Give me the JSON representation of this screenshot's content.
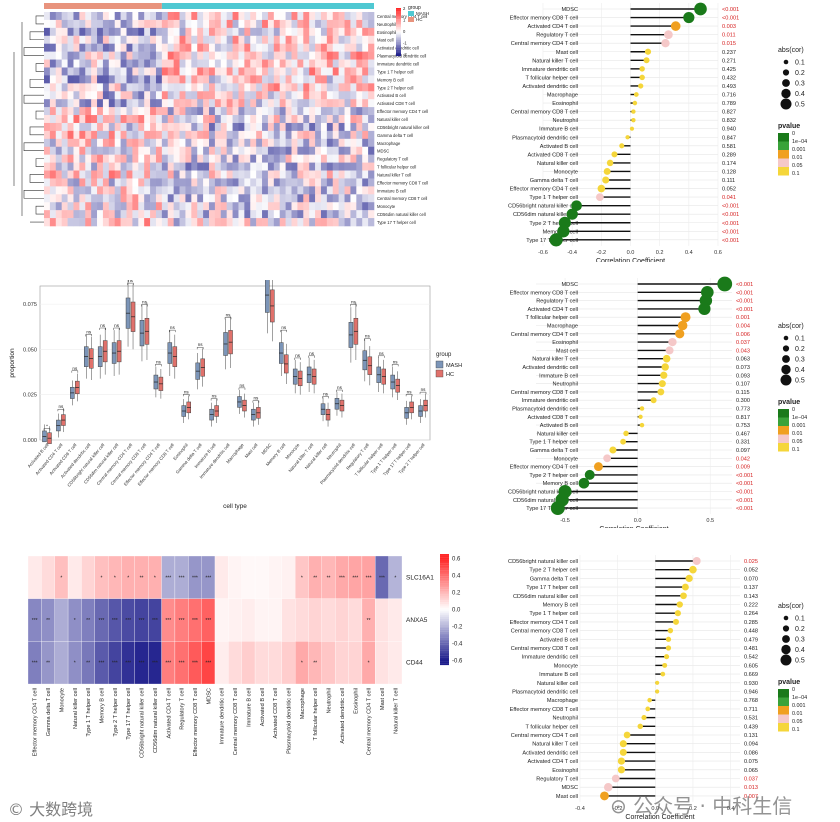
{
  "heatmap_top": {
    "legend_title": "group",
    "groups": [
      "MASH",
      "HC"
    ],
    "group_colors": [
      "#4fc8d2",
      "#e8937d"
    ],
    "scale_ticks": [
      "2",
      "1",
      "0",
      "-1",
      "-2"
    ],
    "row_labels": [
      "Central memory CD4 T cell",
      "Neutrophil",
      "Eosinophil",
      "Mast cell",
      "Activated dendritic cell",
      "Plasmacytoid dendritic cell",
      "Immature dendritic cell",
      "Type 1 T helper cell",
      "Memory B cell",
      "Type 2 T helper cell",
      "Activated B cell",
      "Activated CD8 T cell",
      "Effector memory CD4 T cell",
      "Natural killer cell",
      "CD56bright natural killer cell",
      "Gamma delta T cell",
      "Macrophage",
      "MDSC",
      "Regulatory T cell",
      "T follicular helper cell",
      "Natural killer T cell",
      "Effector memory CD8 T cell",
      "Immature B cell",
      "Central memory CD8 T cell",
      "Monocyte",
      "CD56dim natural killer cell",
      "Type 17 T helper cell"
    ]
  },
  "watermark": {
    "left": "大数跨境",
    "right": "公众号 · 中科生信"
  },
  "chart_data": [
    {
      "type": "lollipop",
      "id": "corr1",
      "xlabel": "Correlation Coefficient",
      "xlim": [
        -0.6,
        0.6
      ],
      "xticks": [
        "-0.6",
        "-0.4",
        "-0.2",
        "0.0",
        "0.2",
        "0.4",
        "0.6"
      ],
      "xtick_values": [
        -0.6,
        -0.4,
        -0.2,
        0,
        0.2,
        0.4,
        0.6
      ],
      "legend_size_title": "abs(cor)",
      "legend_size_items": [
        "0.1",
        "0.2",
        "0.3",
        "0.4",
        "0.5"
      ],
      "legend_size_values": [
        0.1,
        0.2,
        0.3,
        0.4,
        0.5
      ],
      "legend_color_title": "pvalue",
      "legend_color_items": [
        "0",
        "1e−04",
        "0.001",
        "0.01",
        "0.05",
        "0.1"
      ],
      "legend_colors": [
        "#1a7a1a",
        "#3aa33a",
        "#f0a020",
        "#f5c8c8",
        "#f5d63a"
      ],
      "items": [
        {
          "label": "MDSC",
          "cor": 0.48,
          "p": "<0.001"
        },
        {
          "label": "Effector memory CD8 T cell",
          "cor": 0.4,
          "p": "<0.001"
        },
        {
          "label": "Activated CD4 T cell",
          "cor": 0.31,
          "p": "0.003"
        },
        {
          "label": "Regulatory T cell",
          "cor": 0.26,
          "p": "0.011"
        },
        {
          "label": "Central memory CD4 T cell",
          "cor": 0.24,
          "p": "0.015"
        },
        {
          "label": "Mast cell",
          "cor": 0.12,
          "p": "0.237"
        },
        {
          "label": "Natural killer T cell",
          "cor": 0.11,
          "p": "0.271"
        },
        {
          "label": "Immature dendritic cell",
          "cor": 0.08,
          "p": "0.425"
        },
        {
          "label": "T follicular helper cell",
          "cor": 0.08,
          "p": "0.432"
        },
        {
          "label": "Activated dendritic cell",
          "cor": 0.07,
          "p": "0.493"
        },
        {
          "label": "Macrophage",
          "cor": 0.04,
          "p": "0.716"
        },
        {
          "label": "Eosinophil",
          "cor": 0.03,
          "p": "0.789"
        },
        {
          "label": "Central memory CD8 T cell",
          "cor": 0.02,
          "p": "0.827"
        },
        {
          "label": "Neutrophil",
          "cor": 0.02,
          "p": "0.832"
        },
        {
          "label": "Immature B cell",
          "cor": 0.01,
          "p": "0.940"
        },
        {
          "label": "Plasmacytoid dendritic cell",
          "cor": -0.02,
          "p": "0.847"
        },
        {
          "label": "Activated B cell",
          "cor": -0.06,
          "p": "0.581"
        },
        {
          "label": "Activated CD8 T cell",
          "cor": -0.11,
          "p": "0.289"
        },
        {
          "label": "Natural killer cell",
          "cor": -0.14,
          "p": "0.174"
        },
        {
          "label": "Monocyte",
          "cor": -0.16,
          "p": "0.128"
        },
        {
          "label": "Gamma delta T cell",
          "cor": -0.17,
          "p": "0.111"
        },
        {
          "label": "Effector memory CD4 T cell",
          "cor": -0.2,
          "p": "0.052"
        },
        {
          "label": "Type 1 T helper cell",
          "cor": -0.21,
          "p": "0.041"
        },
        {
          "label": "CD56bright natural killer cell",
          "cor": -0.37,
          "p": "<0.001"
        },
        {
          "label": "CD56dim natural killer cell",
          "cor": -0.4,
          "p": "<0.001"
        },
        {
          "label": "Type 2 T helper cell",
          "cor": -0.45,
          "p": "<0.001"
        },
        {
          "label": "Memory B cell",
          "cor": -0.46,
          "p": "<0.001"
        },
        {
          "label": "Type 17 T helper cell",
          "cor": -0.51,
          "p": "<0.001"
        }
      ]
    },
    {
      "type": "lollipop",
      "id": "corr2",
      "xlabel": "Correlation Coefficient",
      "xlim": [
        -0.7,
        0.65
      ],
      "xticks": [
        "-0.5",
        "0.0",
        "0.5"
      ],
      "xtick_values": [
        -0.5,
        0,
        0.5
      ],
      "legend_size_title": "abs(cor)",
      "legend_size_items": [
        "0.1",
        "0.2",
        "0.3",
        "0.4",
        "0.5"
      ],
      "legend_size_values": [
        0.1,
        0.2,
        0.3,
        0.4,
        0.5
      ],
      "legend_color_title": "pvalue",
      "legend_color_items": [
        "0",
        "1e−04",
        "0.001",
        "0.01",
        "0.05",
        "0.1"
      ],
      "legend_colors": [
        "#1a7a1a",
        "#3aa33a",
        "#f0a020",
        "#f5c8c8",
        "#f5d63a"
      ],
      "items": [
        {
          "label": "MDSC",
          "cor": 0.6,
          "p": "<0.001"
        },
        {
          "label": "Effector memory CD8 T cell",
          "cor": 0.48,
          "p": "<0.001"
        },
        {
          "label": "Regulatory T cell",
          "cor": 0.47,
          "p": "<0.001"
        },
        {
          "label": "Activated CD4 T cell",
          "cor": 0.46,
          "p": "<0.001"
        },
        {
          "label": "T follicular helper cell",
          "cor": 0.33,
          "p": "0.001"
        },
        {
          "label": "Macrophage",
          "cor": 0.31,
          "p": "0.004"
        },
        {
          "label": "Central memory CD4 T cell",
          "cor": 0.29,
          "p": "0.006"
        },
        {
          "label": "Eosinophil",
          "cor": 0.24,
          "p": "0.037"
        },
        {
          "label": "Mast cell",
          "cor": 0.22,
          "p": "0.043"
        },
        {
          "label": "Natural killer T cell",
          "cor": 0.2,
          "p": "0.063"
        },
        {
          "label": "Activated dendritic cell",
          "cor": 0.19,
          "p": "0.073"
        },
        {
          "label": "Immature B cell",
          "cor": 0.18,
          "p": "0.093"
        },
        {
          "label": "Neutrophil",
          "cor": 0.17,
          "p": "0.107"
        },
        {
          "label": "Central memory CD8 T cell",
          "cor": 0.16,
          "p": "0.115"
        },
        {
          "label": "Immature dendritic cell",
          "cor": 0.11,
          "p": "0.300"
        },
        {
          "label": "Plasmacytoid dendritic cell",
          "cor": 0.03,
          "p": "0.773"
        },
        {
          "label": "Activated CD8 T cell",
          "cor": 0.02,
          "p": "0.817"
        },
        {
          "label": "Activated B cell",
          "cor": 0.03,
          "p": "0.753"
        },
        {
          "label": "Natural killer cell",
          "cor": -0.08,
          "p": "0.467"
        },
        {
          "label": "Type 1 T helper cell",
          "cor": -0.1,
          "p": "0.331"
        },
        {
          "label": "Gamma delta T cell",
          "cor": -0.17,
          "p": "0.097"
        },
        {
          "label": "Monocyte",
          "cor": -0.21,
          "p": "0.042"
        },
        {
          "label": "Effector memory CD4 T cell",
          "cor": -0.27,
          "p": "0.009"
        },
        {
          "label": "Type 2 T helper cell",
          "cor": -0.33,
          "p": "<0.001"
        },
        {
          "label": "Memory B cell",
          "cor": -0.37,
          "p": "<0.001"
        },
        {
          "label": "CD56bright natural killer cell",
          "cor": -0.5,
          "p": "<0.001"
        },
        {
          "label": "CD56dim natural killer cell",
          "cor": -0.52,
          "p": "<0.001"
        },
        {
          "label": "Type 17 T helper cell",
          "cor": -0.55,
          "p": "<0.001"
        }
      ]
    },
    {
      "type": "lollipop",
      "id": "corr3",
      "xlabel": "Correlation Coefficient",
      "xlim": [
        -0.4,
        0.45
      ],
      "xticks": [
        "-0.4",
        "-0.2",
        "0.0",
        "0.2",
        "0.4"
      ],
      "xtick_values": [
        -0.4,
        -0.2,
        0,
        0.2,
        0.4
      ],
      "legend_size_title": "abs(cor)",
      "legend_size_items": [
        "0.1",
        "0.2",
        "0.3",
        "0.4",
        "0.5"
      ],
      "legend_size_values": [
        0.1,
        0.2,
        0.3,
        0.4,
        0.5
      ],
      "legend_color_title": "pvalue",
      "legend_color_items": [
        "0",
        "1e−04",
        "0.001",
        "0.01",
        "0.05",
        "0.1"
      ],
      "legend_colors": [
        "#1a7a1a",
        "#3aa33a",
        "#f0a020",
        "#f5c8c8",
        "#f5d63a"
      ],
      "items": [
        {
          "label": "CD56bright natural killer cell",
          "cor": 0.22,
          "p": "0.025"
        },
        {
          "label": "Type 2 T helper cell",
          "cor": 0.2,
          "p": "0.052"
        },
        {
          "label": "Gamma delta T cell",
          "cor": 0.18,
          "p": "0.070"
        },
        {
          "label": "Type 17 T helper cell",
          "cor": 0.16,
          "p": "0.137"
        },
        {
          "label": "CD56dim natural killer cell",
          "cor": 0.15,
          "p": "0.143"
        },
        {
          "label": "Memory B cell",
          "cor": 0.13,
          "p": "0.222"
        },
        {
          "label": "Type 1 T helper cell",
          "cor": 0.12,
          "p": "0.264"
        },
        {
          "label": "Effector memory CD4 T cell",
          "cor": 0.11,
          "p": "0.285"
        },
        {
          "label": "Central memory CD8 T cell",
          "cor": 0.08,
          "p": "0.448"
        },
        {
          "label": "Activated B cell",
          "cor": 0.07,
          "p": "0.479"
        },
        {
          "label": "Central memory CD8 T cell",
          "cor": 0.07,
          "p": "0.481"
        },
        {
          "label": "Immature dendritic cell",
          "cor": 0.06,
          "p": "0.542"
        },
        {
          "label": "Monocyte",
          "cor": 0.05,
          "p": "0.605"
        },
        {
          "label": "Immature B cell",
          "cor": 0.04,
          "p": "0.669"
        },
        {
          "label": "Natural killer cell",
          "cor": 0.01,
          "p": "0.930"
        },
        {
          "label": "Plasmacytoid dendritic cell",
          "cor": 0.01,
          "p": "0.946"
        },
        {
          "label": "Macrophage",
          "cor": -0.03,
          "p": "0.768"
        },
        {
          "label": "Effector memory CD8 T cell",
          "cor": -0.04,
          "p": "0.711"
        },
        {
          "label": "Neutrophil",
          "cor": -0.06,
          "p": "0.531"
        },
        {
          "label": "T follicular helper cell",
          "cor": -0.08,
          "p": "0.439"
        },
        {
          "label": "Central memory CD4 T cell",
          "cor": -0.15,
          "p": "0.131"
        },
        {
          "label": "Natural killer T cell",
          "cor": -0.17,
          "p": "0.094"
        },
        {
          "label": "Activated dendritic cell",
          "cor": -0.17,
          "p": "0.086"
        },
        {
          "label": "Activated CD4 T cell",
          "cor": -0.18,
          "p": "0.075"
        },
        {
          "label": "Eosinophil",
          "cor": -0.18,
          "p": "0.065"
        },
        {
          "label": "Regulatory T cell",
          "cor": -0.21,
          "p": "0.037"
        },
        {
          "label": "MDSC",
          "cor": -0.25,
          "p": "0.013"
        },
        {
          "label": "Mast cell",
          "cor": -0.27,
          "p": "0.007"
        }
      ]
    },
    {
      "type": "boxplot",
      "id": "box",
      "xlabel": "cell type",
      "ylabel": "proportion",
      "ylim": [
        0.0,
        0.085
      ],
      "yticks": [
        "0.000",
        "0.025",
        "0.050",
        "0.075"
      ],
      "ytick_values": [
        0,
        0.025,
        0.05,
        0.075
      ],
      "legend_title": "group",
      "groups": [
        "MASH",
        "HC"
      ],
      "group_colors": [
        "#7c95b8",
        "#e0716b"
      ],
      "categories": [
        "Activated B cell",
        "Activated CD4 T cell",
        "Activated CD8 T cell",
        "Activated dendritic cell",
        "CD56bright natural killer cell",
        "CD56dim natural killer cell",
        "Central memory CD4 T cell",
        "Central memory CD8 T cell",
        "Effector memory CD4 T cell",
        "Effector memory CD8 T cell",
        "Eosinophil",
        "Gamma delta T cell",
        "Immature B cell",
        "Immature dendritic cell",
        "Macrophage",
        "Mast cell",
        "MDSC",
        "Memory B cell",
        "Monocyte",
        "Natural killer T cell",
        "Natural killer cell",
        "Neutrophil",
        "Plasmacytoid dendritic cell",
        "Regulatory T cell",
        "T follicular helper cell",
        "Type 1 T helper cell",
        "Type 17 T helper cell",
        "Type 2 T helper cell"
      ],
      "mash_median": [
        0.002,
        0.008,
        0.026,
        0.046,
        0.046,
        0.048,
        0.07,
        0.059,
        0.032,
        0.048,
        0.016,
        0.038,
        0.014,
        0.053,
        0.021,
        0.014,
        0.08,
        0.048,
        0.035,
        0.036,
        0.017,
        0.02,
        0.058,
        0.044,
        0.036,
        0.032,
        0.015,
        0.016
      ],
      "hc_median": [
        0.001,
        0.011,
        0.029,
        0.045,
        0.049,
        0.049,
        0.068,
        0.06,
        0.031,
        0.046,
        0.018,
        0.04,
        0.016,
        0.054,
        0.019,
        0.015,
        0.074,
        0.042,
        0.034,
        0.035,
        0.014,
        0.019,
        0.06,
        0.041,
        0.035,
        0.03,
        0.018,
        0.019
      ],
      "significance": [
        "*",
        "ns",
        "ns",
        "ns",
        "ns",
        "ns",
        "ns",
        "ns",
        "ns",
        "ns",
        "ns",
        "ns",
        "ns",
        "ns",
        "ns",
        "ns",
        "**",
        "ns",
        "ns",
        "ns",
        "ns",
        "ns",
        "ns",
        "ns",
        "ns",
        "ns",
        "ns",
        "ns"
      ]
    },
    {
      "type": "heatmap",
      "id": "genes",
      "rows": [
        "SLC16A1",
        "ANXA5",
        "CD44"
      ],
      "columns": [
        "Effector memory CD4 T cell",
        "Gamma delta T cell",
        "Monocyte",
        "Natural killer cell",
        "Type 1 T helper cell",
        "Memory B cell",
        "Type 2 T helper cell",
        "Type 17 T helper cell",
        "CD56bright natural killer cell",
        "CD56dim natural killer cell",
        "Activated CD4 T cell",
        "Regulatory T cell",
        "Effector memory CD8 T cell",
        "MDSC",
        "Immature dendritic cell",
        "Central memory CD8 T cell",
        "Immature B cell",
        "Activated B cell",
        "Activated CD8 T cell",
        "Plasmacytoid dendritic cell",
        "Macrophage",
        "T follicular helper cell",
        "Neutrophil",
        "Activated dendritic cell",
        "Eosinophil",
        "Central memory CD4 T cell",
        "Mast cell",
        "Natural killer T cell"
      ],
      "values": [
        [
          0.06,
          0.1,
          0.18,
          0.06,
          0.12,
          0.18,
          0.2,
          0.22,
          0.22,
          0.22,
          -0.22,
          -0.22,
          -0.28,
          -0.28,
          0.06,
          0.03,
          0.02,
          0.02,
          0.03,
          0.04,
          0.16,
          0.22,
          0.2,
          0.24,
          0.25,
          0.26,
          -0.4,
          -0.2
        ],
        [
          -0.32,
          -0.3,
          -0.22,
          -0.3,
          -0.34,
          -0.4,
          -0.45,
          -0.48,
          -0.5,
          -0.5,
          0.32,
          0.36,
          0.4,
          0.44,
          0.03,
          0.04,
          0.05,
          0.03,
          0.03,
          0.08,
          0.1,
          0.12,
          0.1,
          0.12,
          0.1,
          0.22,
          0.08,
          0.06
        ],
        [
          -0.34,
          -0.28,
          -0.22,
          -0.3,
          -0.36,
          -0.44,
          -0.5,
          -0.55,
          -0.58,
          -0.58,
          0.36,
          0.4,
          0.46,
          0.52,
          0.05,
          0.1,
          0.14,
          0.1,
          0.1,
          0.14,
          0.24,
          0.2,
          0.16,
          0.12,
          0.12,
          0.24,
          0.08,
          0.06
        ]
      ],
      "stars": [
        [
          "",
          "",
          "*",
          "",
          "",
          "*",
          "*",
          "*",
          "**",
          "*",
          "***",
          "***",
          "***",
          "***",
          "",
          "",
          "",
          "",
          "",
          "",
          "*",
          "**",
          "**",
          "***",
          "***",
          "***",
          "***",
          "*"
        ],
        [
          "***",
          "**",
          "",
          "*",
          "**",
          "***",
          "***",
          "***",
          "***",
          "***",
          "***",
          "***",
          "***",
          "***",
          "",
          "",
          "",
          "",
          "",
          "",
          "",
          "",
          "",
          "",
          "",
          "**",
          "",
          ""
        ],
        [
          "***",
          "**",
          "",
          "*",
          "**",
          "***",
          "***",
          "***",
          "***",
          "***",
          "***",
          "***",
          "***",
          "***",
          "",
          "",
          "",
          "",
          "",
          "",
          "*",
          "**",
          "",
          "",
          "",
          "*",
          "",
          ""
        ]
      ],
      "scale_ticks": [
        "0.6",
        "0.4",
        "0.2",
        "0.0",
        "-0.2",
        "-0.4",
        "-0.6"
      ],
      "scale_values": [
        0.6,
        0.4,
        0.2,
        0,
        -0.2,
        -0.4,
        -0.6
      ]
    }
  ]
}
